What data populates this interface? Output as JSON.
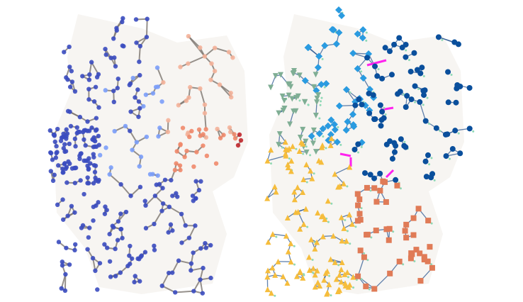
{
  "figure": {
    "background": "#ffffff",
    "map_fill": "#f7f5f2",
    "left_panel": {
      "edge_color": "#7d7670",
      "node_shape": "circle",
      "node_colors": {
        "main": "#3b4cc0",
        "light": "#7b9ff9",
        "warm": "#f08a6c",
        "peach": "#f4b39a",
        "hot": "#c0282d"
      }
    },
    "right_panel": {
      "edge_color": "#1f4e8c",
      "interconnector_color": "#ff22ee",
      "connector_dot_color": "#8fd9b6",
      "clusters": [
        {
          "shape": "diamond",
          "color": "#2a9be0"
        },
        {
          "shape": "circle",
          "color": "#0a4f9c"
        },
        {
          "shape": "triangle-down",
          "color": "#7fae94"
        },
        {
          "shape": "triangle-up",
          "color": "#f6bd3c"
        },
        {
          "shape": "square",
          "color": "#e07b57"
        }
      ]
    }
  }
}
